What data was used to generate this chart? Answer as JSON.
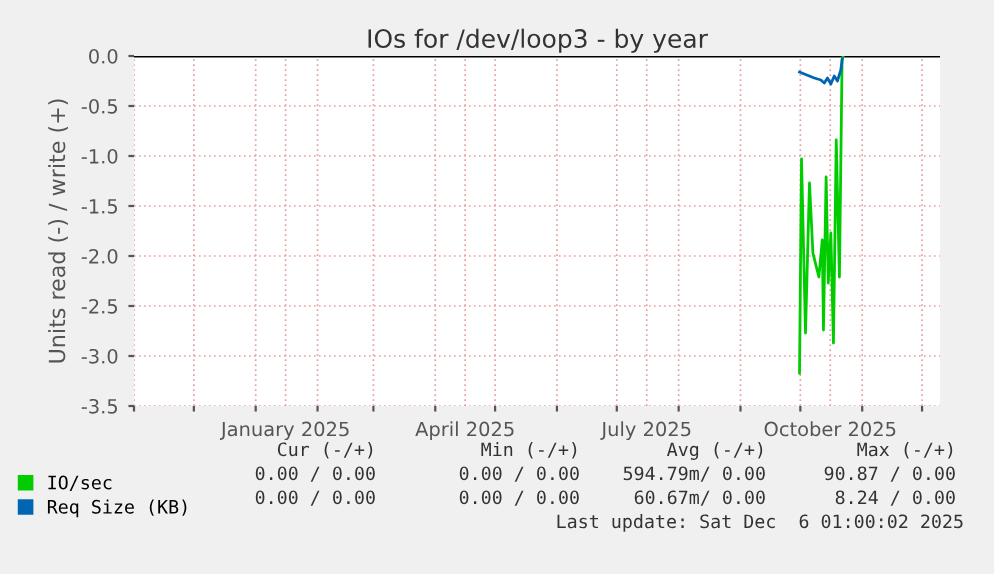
{
  "chart_data": {
    "type": "line",
    "title": "IOs for /dev/loop3 - by year",
    "ylabel": "Units read (-) / write (+)",
    "xlim": [
      "2024-11-01",
      "2025-12-10"
    ],
    "xticks": [
      {
        "value": "2024-11-01",
        "label": null
      },
      {
        "value": "2024-12-01",
        "label": null
      },
      {
        "value": "2025-01-01",
        "label": null
      },
      {
        "value": "2025-01-16",
        "label": "January 2025"
      },
      {
        "value": "2025-02-01",
        "label": null
      },
      {
        "value": "2025-03-01",
        "label": null
      },
      {
        "value": "2025-04-01",
        "label": null
      },
      {
        "value": "2025-04-16",
        "label": "April 2025"
      },
      {
        "value": "2025-05-01",
        "label": null
      },
      {
        "value": "2025-06-01",
        "label": null
      },
      {
        "value": "2025-07-01",
        "label": null
      },
      {
        "value": "2025-07-16",
        "label": "July 2025"
      },
      {
        "value": "2025-08-01",
        "label": null
      },
      {
        "value": "2025-09-01",
        "label": null
      },
      {
        "value": "2025-10-01",
        "label": null
      },
      {
        "value": "2025-10-16",
        "label": "October 2025"
      },
      {
        "value": "2025-11-01",
        "label": null
      },
      {
        "value": "2025-12-01",
        "label": null
      }
    ],
    "ylim": [
      -3.5,
      0.0
    ],
    "yticks": [
      {
        "value": 0,
        "label": "0.0"
      },
      {
        "value": -0.5,
        "label": "-0.5"
      },
      {
        "value": -1,
        "label": "-1.0"
      },
      {
        "value": -1.5,
        "label": "-1.5"
      },
      {
        "value": -2,
        "label": "-2.0"
      },
      {
        "value": -2.5,
        "label": "-2.5"
      },
      {
        "value": -3,
        "label": "-3.0"
      },
      {
        "value": -3.5,
        "label": "-3.5"
      }
    ],
    "grid": true,
    "legend": "bottom left",
    "line_style": "solid",
    "marker": "none",
    "ref_lines": [
      {
        "axis": "y",
        "value": 0,
        "color": "#000000"
      }
    ],
    "series": [
      {
        "name": "IO/sec",
        "color": "#00cc00",
        "x": [
          "2025-09-30T14:00",
          "2025-10-01T14:00",
          "2025-10-03T14:00",
          "2025-10-05T14:00",
          "2025-10-07T07:00",
          "2025-10-10T07:00",
          "2025-10-12T00:00",
          "2025-10-12T14:00",
          "2025-10-13T22:00",
          "2025-10-15T00:00",
          "2025-10-16T07:00",
          "2025-10-17T14:00",
          "2025-10-19T00:00",
          "2025-10-20T14:00",
          "2025-10-21T22:00",
          "2025-10-22T12:00"
        ],
        "values": [
          -3.17,
          -1.03,
          -2.77,
          -1.27,
          -1.97,
          -2.21,
          -1.84,
          -2.74,
          -1.21,
          -2.27,
          -1.77,
          -2.87,
          -0.84,
          -2.21,
          -0.04,
          0
        ]
      },
      {
        "name": "Req Size (KB)",
        "color": "#0066b3",
        "x": [
          "2025-09-30T14:00",
          "2025-10-03T00:00",
          "2025-10-08T00:00",
          "2025-10-11T07:00",
          "2025-10-13T00:00",
          "2025-10-14T14:00",
          "2025-10-16T07:00",
          "2025-10-18T00:00",
          "2025-10-19T14:00",
          "2025-10-21T07:00",
          "2025-10-22T00:00"
        ],
        "values": [
          -0.16,
          -0.18,
          -0.22,
          -0.24,
          -0.27,
          -0.22,
          -0.28,
          -0.2,
          -0.25,
          -0.14,
          -0.03
        ]
      }
    ],
    "annotations": [
      "Cur (-/+)",
      "Min (-/+)",
      "Avg (-/+)",
      "Max (-/+)",
      "0.00 / 0.00",
      "0.00 / 0.00",
      "594.79m/ 0.00",
      "90.87 / 0.00",
      "0.00 / 0.00",
      "0.00 / 0.00",
      "60.67m/ 0.00",
      "8.24 / 0.00",
      "Last update: Sat Dec  6 01:00:02 2025"
    ]
  }
}
